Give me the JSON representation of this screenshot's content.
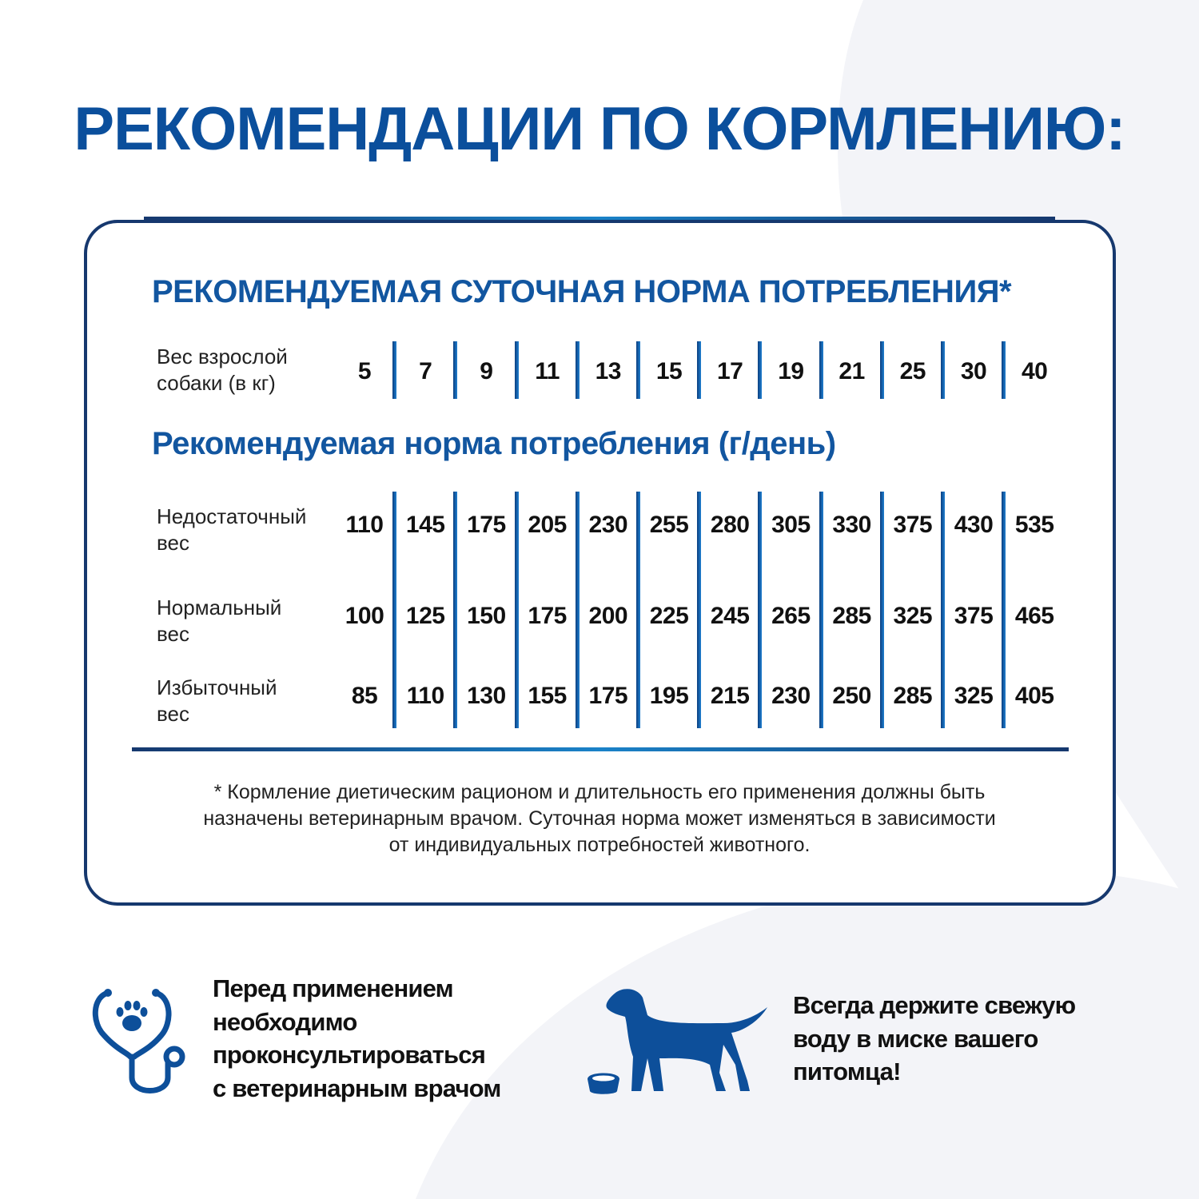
{
  "title": "РЕКОМЕНДАЦИИ ПО КОРМЛЕНИЮ:",
  "card": {
    "subtitle": "РЕКОМЕНДУЕМАЯ СУТОЧНАЯ НОРМА ПОТРЕБЛЕНИЯ*",
    "weight_label": [
      "Вес взрослой",
      "собаки (в кг)"
    ],
    "weights": [
      "5",
      "7",
      "9",
      "11",
      "13",
      "15",
      "17",
      "19",
      "21",
      "25",
      "30",
      "40"
    ],
    "section_title": "Рекомендуемая норма потребления (г/день)",
    "rows": [
      {
        "label": [
          "Недостаточный",
          "вес"
        ],
        "values": [
          "110",
          "145",
          "175",
          "205",
          "230",
          "255",
          "280",
          "305",
          "330",
          "375",
          "430",
          "535"
        ]
      },
      {
        "label": [
          "Нормальный",
          "вес"
        ],
        "values": [
          "100",
          "125",
          "150",
          "175",
          "200",
          "225",
          "245",
          "265",
          "285",
          "325",
          "375",
          "465"
        ]
      },
      {
        "label": [
          "Избыточный",
          "вес"
        ],
        "values": [
          "85",
          "110",
          "130",
          "155",
          "175",
          "195",
          "215",
          "230",
          "250",
          "285",
          "325",
          "405"
        ]
      }
    ],
    "footnote": [
      "* Кормление диетическим рационом и длительность его применения должны быть",
      "назначены ветеринарным врачом. Суточная норма может изменяться в зависимости",
      "от индивидуальных потребностей животного."
    ]
  },
  "tips": [
    {
      "icon": "stethoscope-paw-icon",
      "lines": [
        "Перед применением",
        "необходимо",
        "проконсультироваться",
        "с ветеринарным врачом"
      ]
    },
    {
      "icon": "dog-with-bowl-icon",
      "lines": [
        "Всегда держите свежую",
        "воду в миске вашего",
        "питомца!"
      ]
    }
  ],
  "colors": {
    "primary": "#0b4f9c",
    "border": "#16386e",
    "icon": "#0d4f9a"
  }
}
